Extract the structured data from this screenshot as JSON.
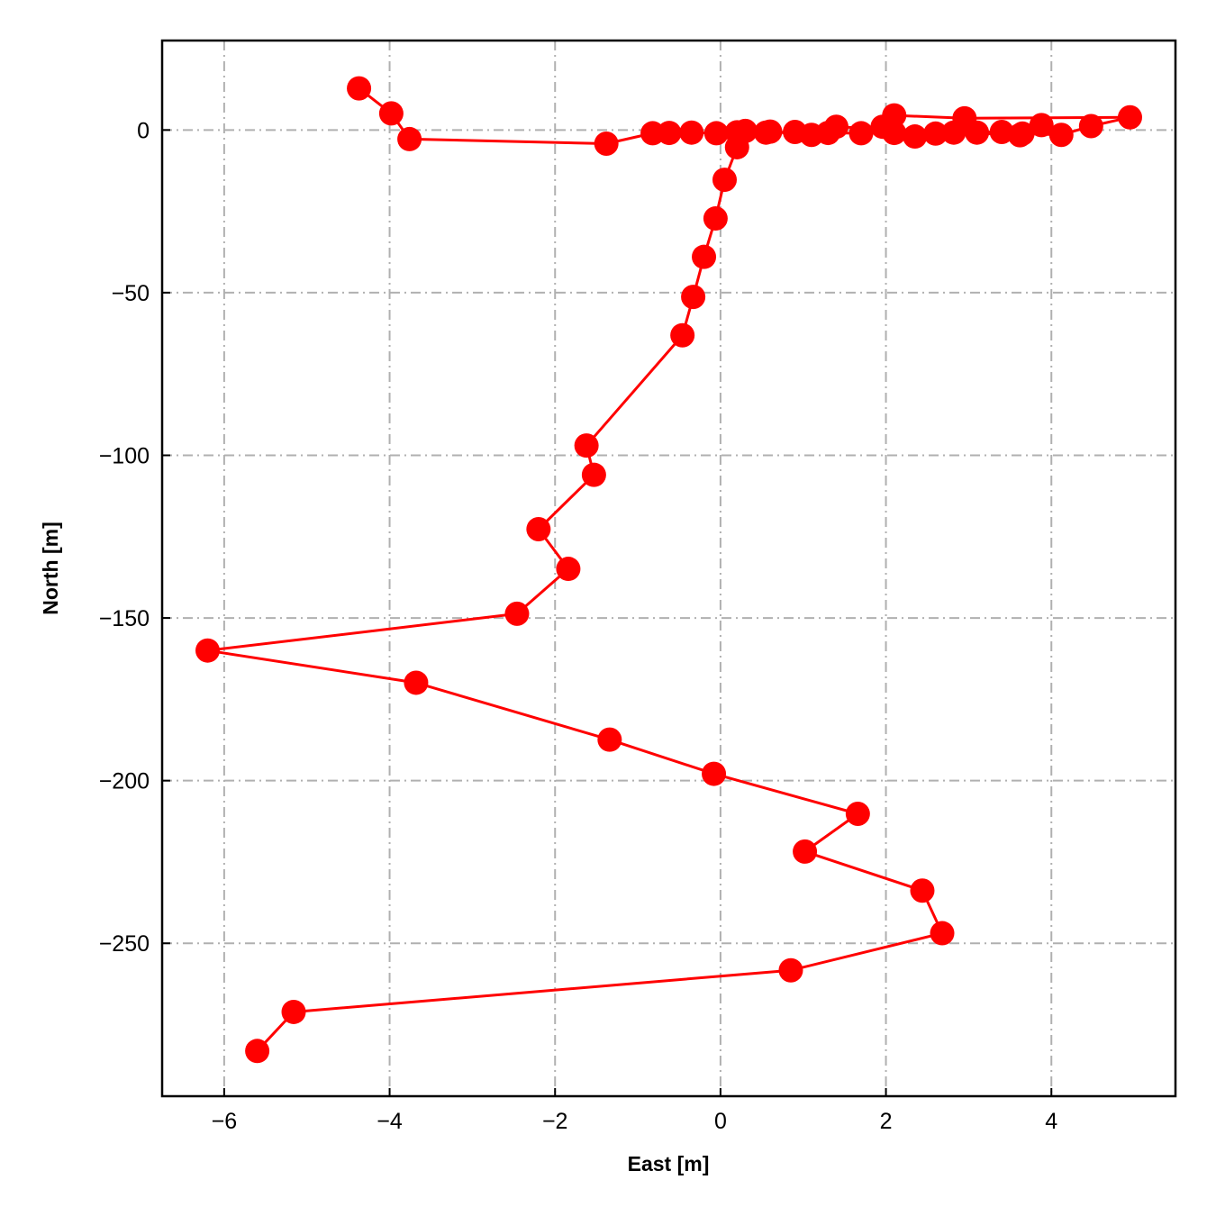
{
  "chart_data": {
    "type": "line",
    "title": "",
    "xlabel": "East [m]",
    "ylabel": "North [m]",
    "xlim": [
      -6.75,
      5.5
    ],
    "ylim": [
      -297,
      27.5
    ],
    "xticks": [
      -6,
      -4,
      -2,
      0,
      2,
      4
    ],
    "yticks": [
      0,
      -50,
      -100,
      -150,
      -200,
      -250
    ],
    "grid": true,
    "grid_style": "dash-dot",
    "colors": {
      "series": "#ff0000",
      "grid": "#b0b0b0",
      "frame": "#000000"
    },
    "series": [
      {
        "marker": "circle",
        "points": [
          {
            "x": -4.37,
            "y": 12.8
          },
          {
            "x": -3.98,
            "y": 5.1
          },
          {
            "x": -3.76,
            "y": -2.8
          },
          {
            "x": -1.38,
            "y": -4.2
          },
          {
            "x": -0.82,
            "y": -1.0
          },
          {
            "x": -0.62,
            "y": -0.9
          },
          {
            "x": -0.35,
            "y": -0.8
          },
          {
            "x": -0.05,
            "y": -1.0
          },
          {
            "x": 0.2,
            "y": -0.7
          },
          {
            "x": 0.55,
            "y": -0.8
          },
          {
            "x": 0.9,
            "y": -0.6
          },
          {
            "x": 1.3,
            "y": -0.9
          },
          {
            "x": 1.7,
            "y": -1.0
          },
          {
            "x": 2.1,
            "y": -0.9
          },
          {
            "x": 2.6,
            "y": -1.1
          },
          {
            "x": 3.1,
            "y": -0.8
          },
          {
            "x": 3.65,
            "y": -1.1
          },
          {
            "x": 4.12,
            "y": -1.5
          },
          {
            "x": 4.48,
            "y": 1.2
          },
          {
            "x": 4.95,
            "y": 3.9
          },
          {
            "x": 2.95,
            "y": 3.6
          },
          {
            "x": 2.1,
            "y": 4.5
          },
          {
            "x": 1.96,
            "y": 1.0
          },
          {
            "x": 2.35,
            "y": -2.0
          },
          {
            "x": 2.82,
            "y": -0.8
          },
          {
            "x": 3.4,
            "y": -0.6
          },
          {
            "x": 3.88,
            "y": 1.5
          },
          {
            "x": 3.62,
            "y": -1.6
          },
          {
            "x": 1.4,
            "y": 1.0
          },
          {
            "x": 1.1,
            "y": -1.5
          },
          {
            "x": 0.6,
            "y": -0.5
          },
          {
            "x": 0.3,
            "y": -0.3
          },
          {
            "x": 0.2,
            "y": -5.3
          },
          {
            "x": 0.05,
            "y": -15.3
          },
          {
            "x": -0.06,
            "y": -27.2
          },
          {
            "x": -0.2,
            "y": -39.0
          },
          {
            "x": -0.33,
            "y": -51.3
          },
          {
            "x": -0.46,
            "y": -63.1
          },
          {
            "x": -1.62,
            "y": -97.0
          },
          {
            "x": -1.53,
            "y": -106.0
          },
          {
            "x": -2.2,
            "y": -122.7
          },
          {
            "x": -1.84,
            "y": -134.9
          },
          {
            "x": -2.46,
            "y": -148.7
          },
          {
            "x": -6.2,
            "y": -160.0
          },
          {
            "x": -3.68,
            "y": -169.9
          },
          {
            "x": -1.34,
            "y": -187.4
          },
          {
            "x": -0.08,
            "y": -197.9
          },
          {
            "x": 1.66,
            "y": -210.2
          },
          {
            "x": 1.02,
            "y": -221.8
          },
          {
            "x": 2.44,
            "y": -233.8
          },
          {
            "x": 2.68,
            "y": -246.9
          },
          {
            "x": 0.85,
            "y": -258.3
          },
          {
            "x": -5.16,
            "y": -271.1
          },
          {
            "x": -5.6,
            "y": -283.1
          }
        ]
      }
    ]
  }
}
